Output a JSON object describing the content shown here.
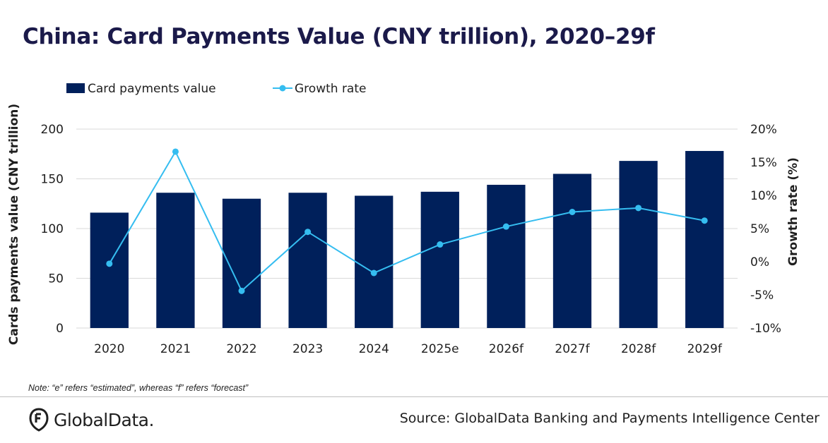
{
  "chart_data": {
    "type": "bar",
    "title": "China: Card Payments Value (CNY trillion), 2020–29f",
    "categories": [
      "2020",
      "2021",
      "2022",
      "2023",
      "2024",
      "2025e",
      "2026f",
      "2027f",
      "2028f",
      "2029f"
    ],
    "series": [
      {
        "name": "Card payments value",
        "type": "bar",
        "axis": "left",
        "values": [
          116,
          136,
          130,
          136,
          133,
          137,
          144,
          155,
          168,
          178
        ]
      },
      {
        "name": "Growth rate",
        "type": "line",
        "axis": "right",
        "values": [
          -0.3,
          16.6,
          -4.4,
          4.5,
          -1.7,
          2.6,
          5.3,
          7.5,
          8.1,
          6.2
        ]
      }
    ],
    "ylabel": "Cards payments value (CNY trillion)",
    "ylabel_right": "Growth rate (%)",
    "ylim": [
      0,
      200
    ],
    "ylim_right": [
      -10,
      20
    ],
    "yticks": [
      "0",
      "50",
      "100",
      "150",
      "200"
    ],
    "yticks_right": [
      "-10%",
      "-5%",
      "0%",
      "5%",
      "10%",
      "15%",
      "20%"
    ],
    "legend_position": "top-left",
    "grid": true,
    "colors": {
      "bar": "#00205b",
      "line": "#35bdf0",
      "grid": "#d9d9d9"
    }
  },
  "note": "Note: “e” refers “estimated”, whereas “f” refers “forecast”",
  "source": "Source: GlobalData Banking and Payments Intelligence Center",
  "logo": {
    "text": "GlobalData.",
    "icon": "globaldata-logo-icon"
  }
}
